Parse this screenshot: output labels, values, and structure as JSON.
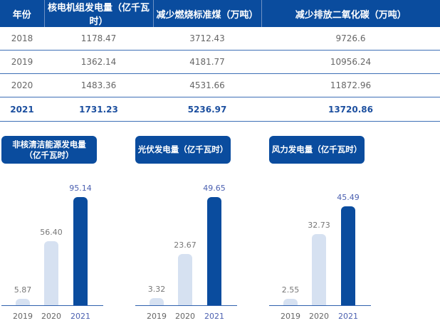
{
  "table": {
    "headers": [
      "年份",
      "核电机组发电量（亿千瓦时）",
      "减少燃烧标准煤（万吨）",
      "减少排放二氧化碳（万吨）"
    ],
    "rows": [
      [
        "2018",
        "1178.47",
        "3712.43",
        "9726.6"
      ],
      [
        "2019",
        "1362.14",
        "4181.77",
        "10956.24"
      ],
      [
        "2020",
        "1483.36",
        "4531.66",
        "11872.96"
      ],
      [
        "2021",
        "1731.23",
        "5236.97",
        "13720.86"
      ]
    ]
  },
  "chart_data": [
    {
      "type": "bar",
      "title": "非核清洁能源发电量",
      "subtitle": "（亿千瓦时）",
      "categories": [
        "2019",
        "2020",
        "2021"
      ],
      "values": [
        5.87,
        56.4,
        95.14
      ],
      "labels": [
        "5.87",
        "56.40",
        "95.14"
      ],
      "ylim": [
        0,
        95.14
      ]
    },
    {
      "type": "bar",
      "title": "光伏发电量（亿千瓦时）",
      "subtitle": "",
      "categories": [
        "2019",
        "2020",
        "2021"
      ],
      "values": [
        3.32,
        23.67,
        49.65
      ],
      "labels": [
        "3.32",
        "23.67",
        "49.65"
      ],
      "ylim": [
        0,
        49.65
      ]
    },
    {
      "type": "bar",
      "title": "风力发电量（亿千瓦时）",
      "subtitle": "",
      "categories": [
        "2019",
        "2020",
        "2021"
      ],
      "values": [
        2.55,
        32.73,
        45.49
      ],
      "labels": [
        "2.55",
        "32.73",
        "45.49"
      ],
      "ylim": [
        0,
        49.65
      ]
    }
  ],
  "colors": {
    "primary": "#0a4c9e",
    "light": "#d6e1f1",
    "highlight_text": "#4a5fb0"
  }
}
